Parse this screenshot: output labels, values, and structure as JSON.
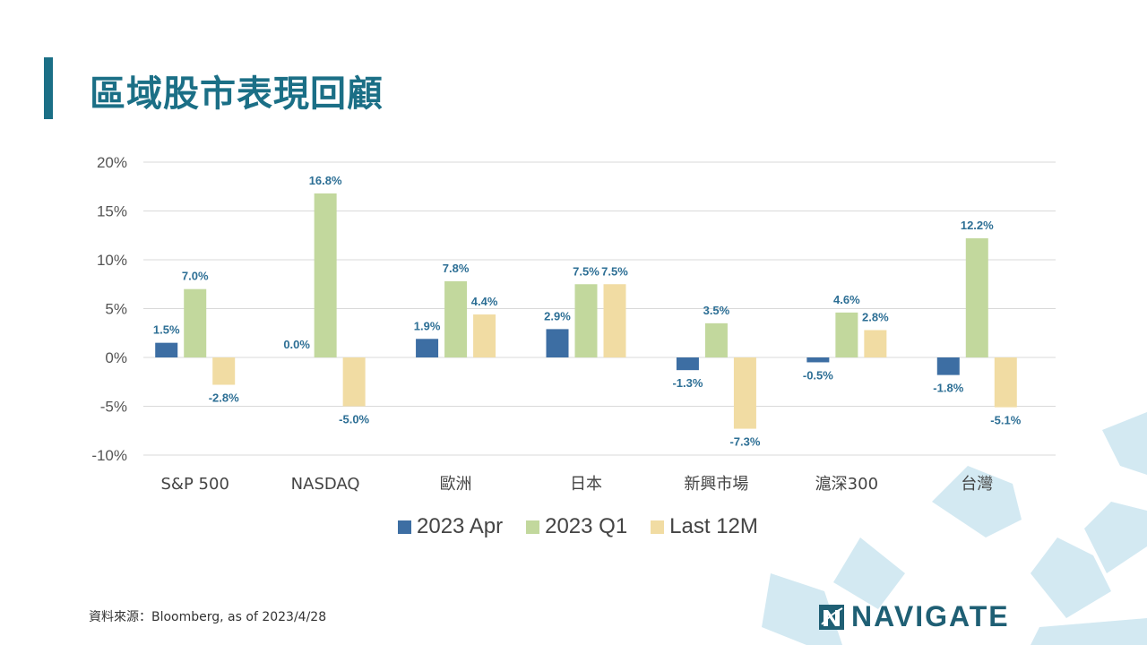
{
  "page": {
    "title": "區域股市表現回顧",
    "source": "資料來源：Bloomberg, as of 2023/4/28",
    "logo_text": "NAVIGATE",
    "accent_color": "#1b6f86",
    "title_color": "#1b6f86",
    "logo_icon": "navigate-n-logo-icon"
  },
  "chart_data": {
    "type": "bar",
    "categories": [
      "S&P 500",
      "NASDAQ",
      "歐洲",
      "日本",
      "新興市場",
      "滬深300",
      "台灣"
    ],
    "series": [
      {
        "name": "2023 Apr",
        "color": "#3d6ea3",
        "values": [
          1.5,
          0.0,
          1.9,
          2.9,
          -1.3,
          -0.5,
          -1.8
        ]
      },
      {
        "name": "2023 Q1",
        "color": "#c2d89d",
        "values": [
          7.0,
          16.8,
          7.8,
          7.5,
          3.5,
          4.6,
          12.2
        ]
      },
      {
        "name": "Last 12M",
        "color": "#f1dca3",
        "values": [
          -2.8,
          -5.0,
          4.4,
          7.5,
          -7.3,
          2.8,
          -5.1
        ]
      }
    ],
    "data_labels": [
      [
        "1.5%",
        "0.0%",
        "1.9%",
        "2.9%",
        "-1.3%",
        "-0.5%",
        "-1.8%"
      ],
      [
        "7.0%",
        "16.8%",
        "7.8%",
        "7.5%",
        "3.5%",
        "4.6%",
        "12.2%"
      ],
      [
        "-2.8%",
        "-5.0%",
        "4.4%",
        "7.5%",
        "-7.3%",
        "2.8%",
        "-5.1%"
      ]
    ],
    "yticks": [
      "20%",
      "15%",
      "10%",
      "5%",
      "0%",
      "-5%",
      "-10%"
    ],
    "ylim": [
      -10,
      20
    ],
    "grid": true,
    "legend_position": "bottom"
  }
}
